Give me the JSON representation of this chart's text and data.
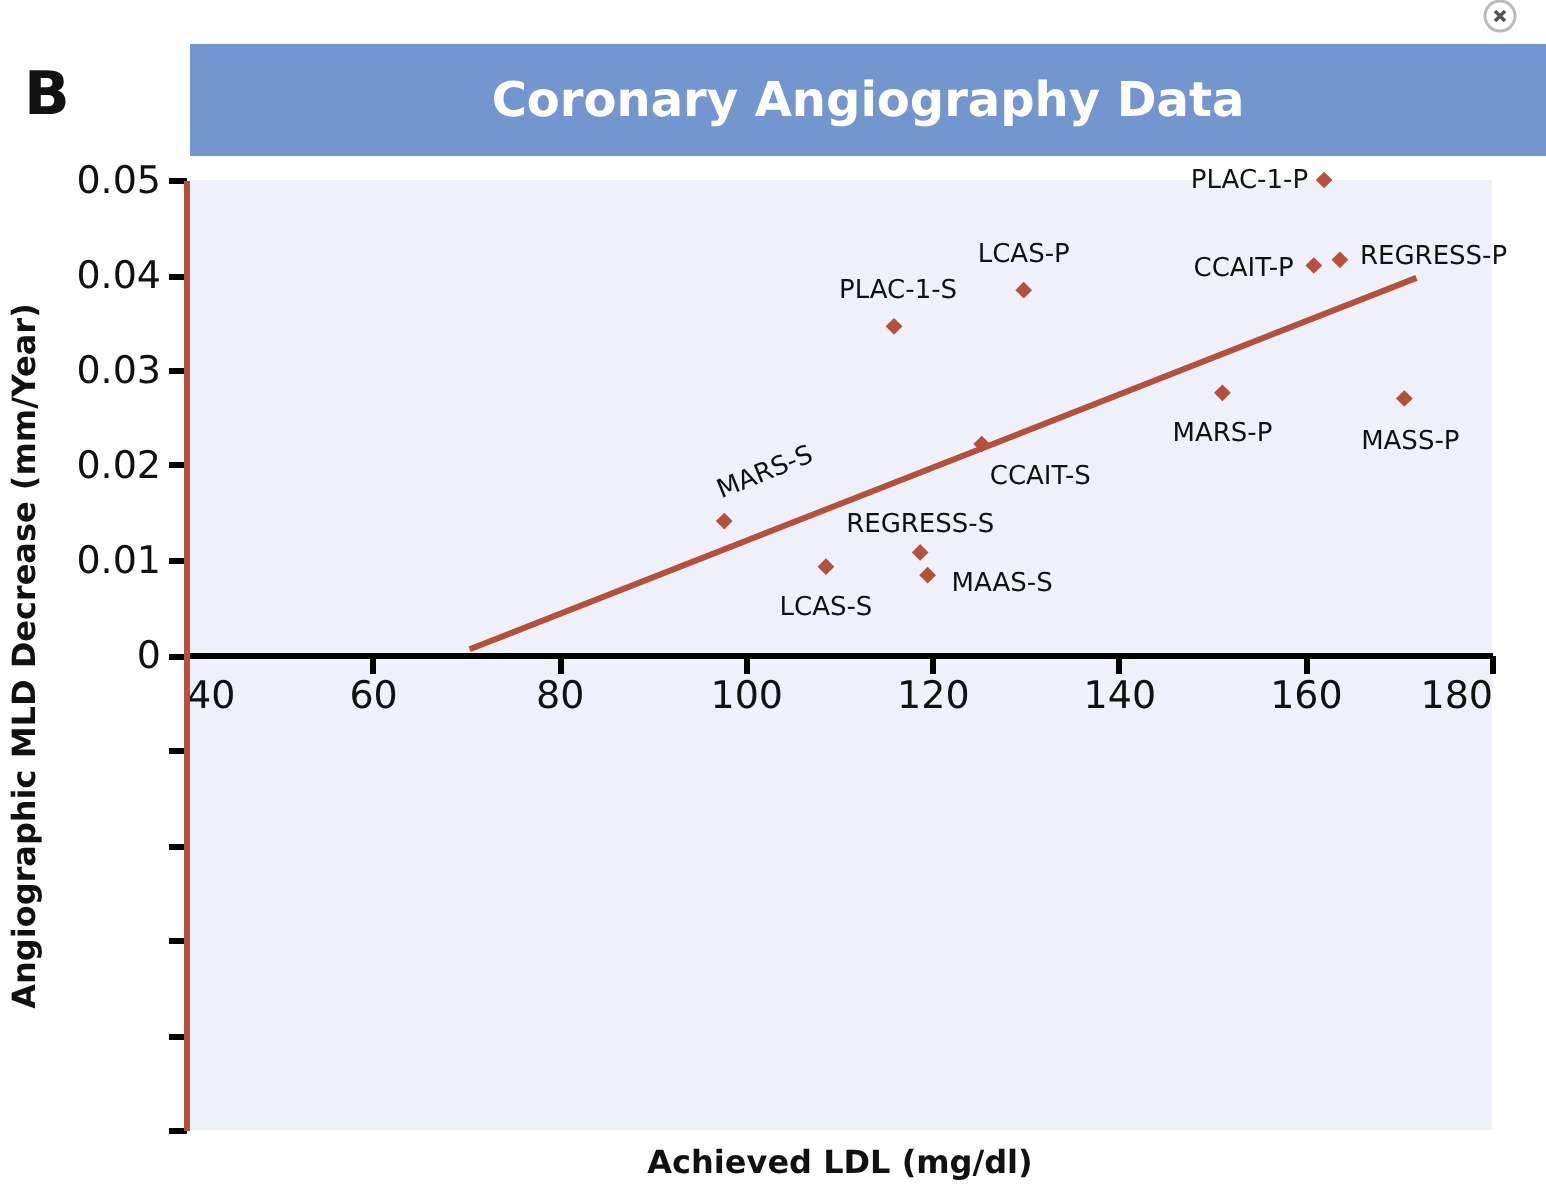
{
  "chart_data": {
    "type": "scatter",
    "title": "Coronary Angiography Data",
    "xlabel": "Achieved LDL (mg/dl)",
    "ylabel": "Angiographic MLD Decrease (mm/Year)",
    "xlim": [
      40,
      180
    ],
    "xticks": [
      40,
      60,
      80,
      100,
      120,
      140,
      160,
      180
    ],
    "ylim": [
      -0.05,
      0.05
    ],
    "yticks": [
      {
        "value": -0.05,
        "label": null
      },
      {
        "value": -0.04,
        "label": null
      },
      {
        "value": -0.03,
        "label": null
      },
      {
        "value": -0.02,
        "label": null
      },
      {
        "value": -0.01,
        "label": null
      },
      0,
      0.01,
      0.02,
      0.03,
      0.04,
      0.05
    ],
    "grid": false,
    "series": [
      {
        "marker": "diamond",
        "color": "#b5503b",
        "x": [
          97.7,
          108.6,
          118.7,
          119.5,
          125.3,
          115.9,
          129.8,
          151.1,
          170.6,
          160.9,
          163.7,
          162.0
        ],
        "values": [
          0.0141,
          0.0093,
          0.0108,
          0.0084,
          0.0222,
          0.0346,
          0.0384,
          0.0276,
          0.027,
          0.041,
          0.0416,
          0.05
        ]
      },
      {
        "type": "line",
        "marker": "none",
        "color": "#b5503b",
        "x": [
          70.4,
          171.9
        ],
        "values": [
          0.0006,
          0.0397
        ]
      }
    ],
    "annotations": [
      "B",
      {
        "text": "MARS-S",
        "x": 97.7,
        "y": 0.0141
      },
      {
        "text": "LCAS-S",
        "x": 108.6,
        "y": 0.0093
      },
      {
        "text": "REGRESS-S",
        "x": 118.7,
        "y": 0.0108
      },
      {
        "text": "MAAS-S",
        "x": 119.5,
        "y": 0.0084
      },
      {
        "text": "CCAIT-S",
        "x": 125.3,
        "y": 0.0222
      },
      {
        "text": "PLAC-1-S",
        "x": 115.9,
        "y": 0.0346
      },
      {
        "text": "LCAS-P",
        "x": 129.8,
        "y": 0.0384
      },
      {
        "text": "MARS-P",
        "x": 151.1,
        "y": 0.0276
      },
      {
        "text": "MASS-P",
        "x": 170.6,
        "y": 0.027
      },
      {
        "text": "CCAIT-P",
        "x": 160.9,
        "y": 0.041
      },
      {
        "text": "REGRESS-P",
        "x": 163.7,
        "y": 0.0416
      },
      {
        "text": "PLAC-1-P",
        "x": 162.0,
        "y": 0.05
      }
    ]
  }
}
